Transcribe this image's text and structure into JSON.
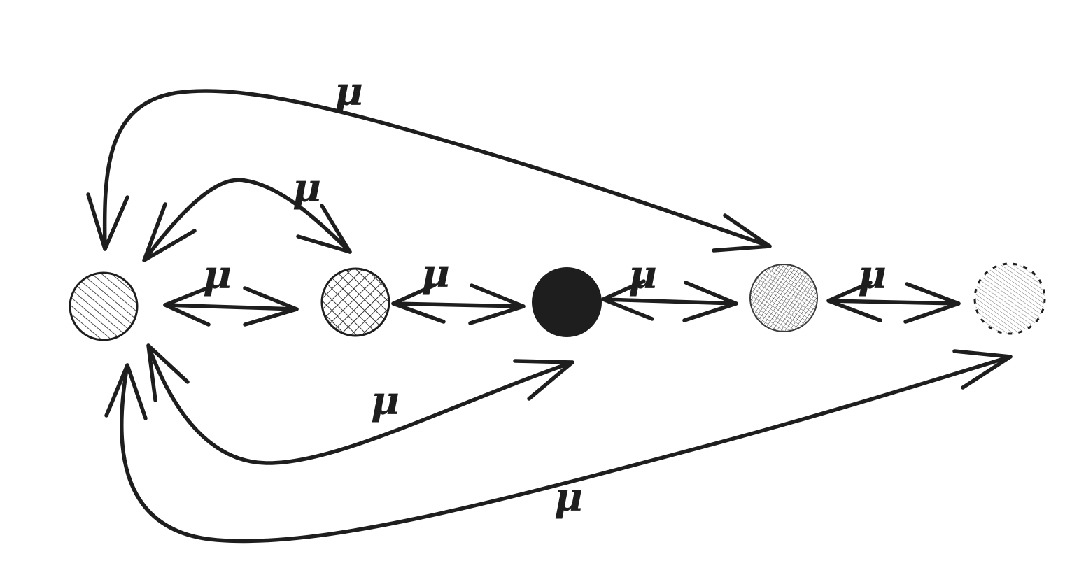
{
  "diagram": {
    "type": "state-transition-graph",
    "stroke_color": "#1e1e1e",
    "background": "#ffffff",
    "nodes": [
      {
        "id": "n1",
        "fill": "diagonal-hatch",
        "color": "#1e1e1e"
      },
      {
        "id": "n2",
        "fill": "cross-hatch",
        "color": "#1e1e1e"
      },
      {
        "id": "n3",
        "fill": "solid",
        "color": "#1e1e1e"
      },
      {
        "id": "n4",
        "fill": "dense-cross-hatch",
        "color": "#3a3a3a"
      },
      {
        "id": "n5",
        "fill": "light-diagonal-hatch",
        "color": "#555555",
        "border": "dashed"
      }
    ],
    "edges": [
      {
        "id": "e1",
        "from": "n1",
        "to": "n2",
        "direction": "both",
        "label": "μ"
      },
      {
        "id": "e2",
        "from": "n2",
        "to": "n3",
        "direction": "both",
        "label": "μ"
      },
      {
        "id": "e3",
        "from": "n3",
        "to": "n4",
        "direction": "both",
        "label": "μ"
      },
      {
        "id": "e4",
        "from": "n4",
        "to": "n5",
        "direction": "both",
        "label": "μ"
      },
      {
        "id": "e5",
        "from": "n1",
        "to": "n2",
        "direction": "both",
        "label": "μ"
      },
      {
        "id": "e6",
        "from": "n1",
        "to": "n4",
        "direction": "both",
        "label": "μ"
      },
      {
        "id": "e7",
        "from": "n1",
        "to": "n3",
        "direction": "both",
        "label": "μ"
      },
      {
        "id": "e8",
        "from": "n1",
        "to": "n5",
        "direction": "both",
        "label": "μ"
      }
    ]
  }
}
